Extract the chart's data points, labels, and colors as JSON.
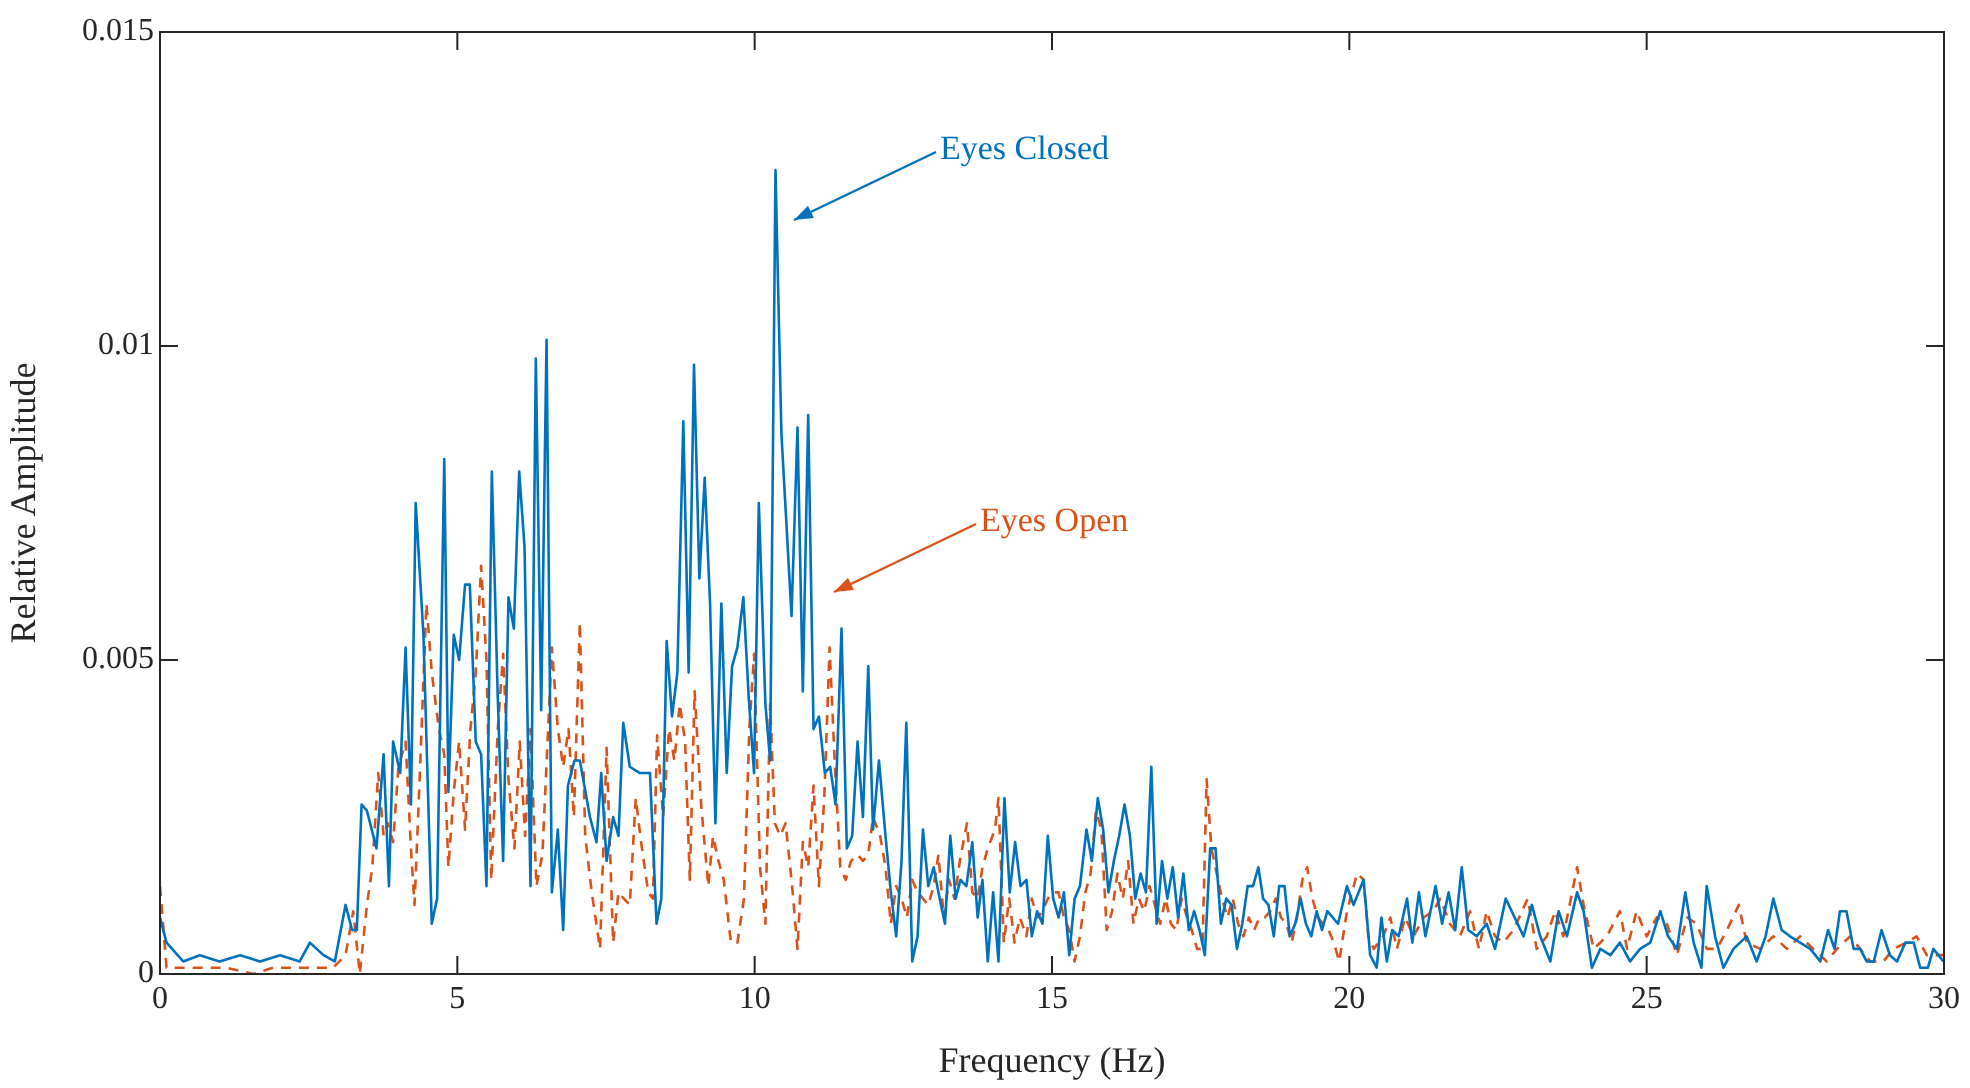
{
  "chart_data": {
    "type": "line",
    "xlabel": "Frequency (Hz)",
    "ylabel": "Relative Amplitude",
    "xlim": [
      0,
      30
    ],
    "xticks": [
      0,
      5,
      10,
      15,
      20,
      25,
      30
    ],
    "ylim": [
      0,
      0.015
    ],
    "yticks": [
      0,
      0.005,
      0.01,
      0.015
    ],
    "grid": false,
    "legend": false,
    "marker": "none",
    "annotations": [
      "Eyes Closed",
      "Eyes Open"
    ],
    "series": [
      {
        "color": "#0072bd",
        "line_style": "solid",
        "x": [
          0,
          0.11,
          0.39,
          0.67,
          1.0,
          1.35,
          1.68,
          2.02,
          2.35,
          2.52,
          2.75,
          2.94,
          3.12,
          3.23,
          3.31,
          3.39,
          3.48,
          3.64,
          3.76,
          3.85,
          3.92,
          4.04,
          4.13,
          4.22,
          4.3,
          4.43,
          4.57,
          4.66,
          4.78,
          4.85,
          4.94,
          5.03,
          5.13,
          5.21,
          5.31,
          5.4,
          5.49,
          5.58,
          5.68,
          5.77,
          5.86,
          5.95,
          6.04,
          6.13,
          6.23,
          6.32,
          6.41,
          6.5,
          6.59,
          6.69,
          6.78,
          6.86,
          6.97,
          7.06,
          7.23,
          7.34,
          7.42,
          7.51,
          7.62,
          7.71,
          7.79,
          7.9,
          8.07,
          8.24,
          8.35,
          8.43,
          8.52,
          8.61,
          8.7,
          8.8,
          8.89,
          8.98,
          9.07,
          9.16,
          9.25,
          9.34,
          9.44,
          9.53,
          9.62,
          9.71,
          9.81,
          9.9,
          9.99,
          10.07,
          10.18,
          10.26,
          10.35,
          10.45,
          10.62,
          10.72,
          10.81,
          10.9,
          10.99,
          11.08,
          11.18,
          11.27,
          11.36,
          11.46,
          11.55,
          11.64,
          11.73,
          11.82,
          11.91,
          11.99,
          12.09,
          12.2,
          12.29,
          12.38,
          12.47,
          12.55,
          12.65,
          12.74,
          12.83,
          12.92,
          13.01,
          13.09,
          13.2,
          13.29,
          13.38,
          13.46,
          13.56,
          13.66,
          13.75,
          13.83,
          13.92,
          14.01,
          14.1,
          14.2,
          14.29,
          14.38,
          14.47,
          14.57,
          14.66,
          14.75,
          14.84,
          14.93,
          15.02,
          15.11,
          15.2,
          15.29,
          15.38,
          15.47,
          15.58,
          15.67,
          15.77,
          15.86,
          15.95,
          16.04,
          16.13,
          16.22,
          16.31,
          16.4,
          16.49,
          16.58,
          16.67,
          16.76,
          16.85,
          16.94,
          17.03,
          17.12,
          17.21,
          17.3,
          17.39,
          17.48,
          17.57,
          17.66,
          17.75,
          17.84,
          17.93,
          18.02,
          18.11,
          18.2,
          18.29,
          18.38,
          18.47,
          18.55,
          18.64,
          18.73,
          18.82,
          18.91,
          19.0,
          19.09,
          19.18,
          19.27,
          19.36,
          19.45,
          19.54,
          19.63,
          19.72,
          19.81,
          19.96,
          20.07,
          20.24,
          20.35,
          20.46,
          20.54,
          20.63,
          20.72,
          20.83,
          20.97,
          21.06,
          21.17,
          21.28,
          21.45,
          21.56,
          21.67,
          21.78,
          21.89,
          22.0,
          22.14,
          22.31,
          22.45,
          22.63,
          22.78,
          22.93,
          23.07,
          23.21,
          23.38,
          23.52,
          23.66,
          23.83,
          23.94,
          24.08,
          24.22,
          24.39,
          24.55,
          24.72,
          24.89,
          25.06,
          25.23,
          25.36,
          25.51,
          25.65,
          25.79,
          25.92,
          26.01,
          26.15,
          26.29,
          26.46,
          26.68,
          26.85,
          27.0,
          27.13,
          27.27,
          27.41,
          27.58,
          27.75,
          27.92,
          28.05,
          28.16,
          28.25,
          28.36,
          28.48,
          28.59,
          28.7,
          28.82,
          28.95,
          29.09,
          29.21,
          29.35,
          29.49,
          29.6,
          29.73,
          29.82,
          29.99
        ],
        "values": [
          0.0009,
          0.0005,
          0.0002,
          0.0003,
          0.0002,
          0.0003,
          0.0002,
          0.0003,
          0.0002,
          0.0005,
          0.0003,
          0.0002,
          0.0011,
          0.0007,
          0.0007,
          0.0027,
          0.0026,
          0.002,
          0.0035,
          0.0014,
          0.0037,
          0.0032,
          0.0052,
          0.0027,
          0.0075,
          0.0054,
          0.0008,
          0.0012,
          0.0082,
          0.0029,
          0.0054,
          0.005,
          0.0062,
          0.0062,
          0.0037,
          0.0035,
          0.0014,
          0.008,
          0.0044,
          0.0018,
          0.006,
          0.0055,
          0.008,
          0.0068,
          0.0014,
          0.0098,
          0.0042,
          0.0101,
          0.0013,
          0.0023,
          0.0007,
          0.003,
          0.0034,
          0.0034,
          0.0025,
          0.0021,
          0.0032,
          0.0018,
          0.0025,
          0.0022,
          0.004,
          0.0033,
          0.0032,
          0.0032,
          0.0008,
          0.0012,
          0.0053,
          0.0041,
          0.0048,
          0.0088,
          0.0048,
          0.0097,
          0.0063,
          0.0079,
          0.0059,
          0.0024,
          0.0059,
          0.0032,
          0.0049,
          0.0052,
          0.006,
          0.0044,
          0.0032,
          0.0075,
          0.0043,
          0.0034,
          0.0128,
          0.0086,
          0.0057,
          0.0087,
          0.0045,
          0.0089,
          0.0039,
          0.0041,
          0.0032,
          0.0033,
          0.0027,
          0.0055,
          0.002,
          0.0022,
          0.0037,
          0.0025,
          0.0049,
          0.0023,
          0.0034,
          0.0022,
          0.0013,
          0.0006,
          0.0018,
          0.004,
          0.0002,
          0.0006,
          0.0023,
          0.0014,
          0.0017,
          0.0013,
          0.0008,
          0.0022,
          0.0012,
          0.0015,
          0.0014,
          0.0021,
          0.0009,
          0.0015,
          0.0002,
          0.0013,
          0.0002,
          0.0028,
          0.0013,
          0.0021,
          0.0014,
          0.0015,
          0.0006,
          0.001,
          0.0008,
          0.0022,
          0.0012,
          0.0009,
          0.0013,
          0.0003,
          0.0012,
          0.0014,
          0.0023,
          0.0018,
          0.0028,
          0.0023,
          0.0013,
          0.0018,
          0.0022,
          0.0027,
          0.0022,
          0.0012,
          0.0016,
          0.0013,
          0.0033,
          0.0008,
          0.0018,
          0.0012,
          0.0017,
          0.0009,
          0.0016,
          0.0007,
          0.001,
          0.0007,
          0.0003,
          0.002,
          0.002,
          0.0008,
          0.0012,
          0.0011,
          0.0004,
          0.0008,
          0.0014,
          0.0014,
          0.0017,
          0.0012,
          0.0011,
          0.0006,
          0.0014,
          0.0014,
          0.0006,
          0.0008,
          0.0012,
          0.0008,
          0.0006,
          0.001,
          0.0007,
          0.001,
          0.0009,
          0.0008,
          0.0014,
          0.0011,
          0.0015,
          0.0003,
          0.0001,
          0.0009,
          0.0002,
          0.0007,
          0.0006,
          0.0012,
          0.0005,
          0.0013,
          0.0006,
          0.0014,
          0.0008,
          0.0013,
          0.0007,
          0.0017,
          0.0007,
          0.0006,
          0.0008,
          0.0004,
          0.0012,
          0.0009,
          0.0006,
          0.0011,
          0.0006,
          0.0002,
          0.001,
          0.0006,
          0.0013,
          0.001,
          0.0001,
          0.0004,
          0.0003,
          0.0005,
          0.0002,
          0.0004,
          0.0005,
          0.001,
          0.0006,
          0.0004,
          0.0013,
          0.0005,
          0.0001,
          0.0014,
          0.0006,
          0.0001,
          0.0004,
          0.0006,
          0.0002,
          0.0006,
          0.0012,
          0.0007,
          0.0006,
          0.0005,
          0.0004,
          0.0002,
          0.0007,
          0.0004,
          0.001,
          0.001,
          0.0004,
          0.0004,
          0.0002,
          0.0002,
          0.0007,
          0.0003,
          0.0002,
          0.0005,
          0.0005,
          0.0001,
          0.0001,
          0.0004,
          0.0002
        ]
      },
      {
        "color": "#d95319",
        "line_style": "dashed",
        "x": [
          0,
          0.11,
          0.45,
          1.12,
          1.57,
          1.9,
          2.47,
          2.91,
          3.12,
          3.25,
          3.36,
          3.48,
          3.57,
          3.67,
          3.76,
          3.83,
          3.92,
          4.01,
          4.13,
          4.22,
          4.28,
          4.37,
          4.48,
          4.57,
          4.69,
          4.78,
          4.85,
          4.94,
          5.03,
          5.13,
          5.22,
          5.31,
          5.4,
          5.49,
          5.57,
          5.68,
          5.77,
          5.86,
          5.96,
          6.05,
          6.14,
          6.23,
          6.33,
          6.43,
          6.59,
          6.69,
          6.78,
          6.87,
          6.96,
          7.06,
          7.15,
          7.26,
          7.4,
          7.51,
          7.62,
          7.71,
          7.8,
          7.9,
          8.0,
          8.09,
          8.21,
          8.29,
          8.36,
          8.46,
          8.56,
          8.65,
          8.74,
          8.83,
          8.91,
          8.99,
          9.1,
          9.22,
          9.3,
          9.39,
          9.48,
          9.6,
          9.71,
          9.82,
          9.91,
          9.99,
          10.09,
          10.18,
          10.26,
          10.34,
          10.43,
          10.52,
          10.63,
          10.72,
          10.81,
          10.9,
          10.99,
          11.08,
          11.17,
          11.26,
          11.35,
          11.44,
          11.53,
          11.62,
          11.73,
          11.82,
          11.91,
          11.99,
          12.11,
          12.2,
          12.29,
          12.38,
          12.47,
          12.56,
          12.65,
          12.74,
          12.83,
          12.92,
          13.01,
          13.09,
          13.18,
          13.27,
          13.36,
          13.45,
          13.57,
          13.66,
          13.75,
          13.83,
          13.92,
          14.04,
          14.1,
          14.19,
          14.28,
          14.37,
          14.46,
          14.57,
          14.66,
          14.75,
          14.84,
          14.93,
          15.02,
          15.11,
          15.2,
          15.29,
          15.38,
          15.47,
          15.56,
          15.65,
          15.74,
          15.83,
          15.92,
          16.01,
          16.1,
          16.19,
          16.28,
          16.37,
          16.46,
          16.55,
          16.64,
          16.73,
          16.82,
          16.91,
          17.0,
          17.09,
          17.18,
          17.27,
          17.35,
          17.44,
          17.53,
          17.6,
          17.68,
          17.77,
          17.86,
          17.95,
          18.04,
          18.13,
          18.22,
          18.31,
          18.4,
          18.49,
          18.58,
          18.67,
          18.76,
          18.85,
          18.94,
          19.03,
          19.12,
          19.21,
          19.29,
          19.38,
          19.47,
          19.56,
          19.65,
          19.74,
          19.83,
          19.96,
          20.13,
          20.24,
          20.32,
          20.41,
          20.57,
          20.69,
          20.8,
          20.94,
          21.08,
          21.25,
          21.41,
          21.53,
          21.69,
          21.86,
          22.03,
          22.18,
          22.31,
          22.45,
          22.59,
          22.76,
          23.0,
          23.15,
          23.32,
          23.46,
          23.6,
          23.83,
          23.94,
          24.11,
          24.33,
          24.55,
          24.67,
          24.83,
          25.0,
          25.17,
          25.34,
          25.51,
          25.68,
          25.84,
          26.01,
          26.18,
          26.35,
          26.55,
          26.68,
          26.91,
          27.13,
          27.36,
          27.58,
          27.8,
          28.03,
          28.2,
          28.42,
          28.59,
          28.76,
          28.98,
          29.15,
          29.37,
          29.54,
          29.71,
          29.99
        ],
        "values": [
          0.0014,
          0.0001,
          0.0001,
          0.0001,
          0,
          0.0001,
          0.0001,
          0.0001,
          0.0003,
          0.001,
          0,
          0.0011,
          0.0017,
          0.0032,
          0.0022,
          0.0024,
          0.0021,
          0.0033,
          0.0037,
          0.002,
          0.0011,
          0.0032,
          0.0059,
          0.0048,
          0.0039,
          0.0035,
          0.0017,
          0.0029,
          0.0037,
          0.0023,
          0.0039,
          0.0048,
          0.0065,
          0.005,
          0.0015,
          0.0039,
          0.0051,
          0.0031,
          0.002,
          0.0037,
          0.0022,
          0.0039,
          0.0014,
          0.0019,
          0.0052,
          0.0039,
          0.0033,
          0.0039,
          0.0025,
          0.0056,
          0.0022,
          0.0013,
          0.0004,
          0.0036,
          0.0005,
          0.0013,
          0.0012,
          0.0011,
          0.0028,
          0.0021,
          0.0013,
          0.0012,
          0.0038,
          0.0025,
          0.0039,
          0.0034,
          0.0043,
          0.0037,
          0.0015,
          0.0045,
          0.0027,
          0.0014,
          0.0022,
          0.0018,
          0.0015,
          0.0005,
          0.0005,
          0.0012,
          0.0039,
          0.0051,
          0.0017,
          0.0008,
          0.0043,
          0.0024,
          0.0022,
          0.0024,
          0.0014,
          0.0004,
          0.0021,
          0.0017,
          0.003,
          0.0014,
          0.0028,
          0.0052,
          0.0033,
          0.0017,
          0.0015,
          0.0018,
          0.0019,
          0.0018,
          0.0019,
          0.0025,
          0.0022,
          0.0017,
          0.0008,
          0.0014,
          0.0012,
          0.0009,
          0.0015,
          0.0013,
          0.0012,
          0.0011,
          0.0014,
          0.0019,
          0.0009,
          0.0015,
          0.0012,
          0.0018,
          0.0024,
          0.0013,
          0.0012,
          0.0017,
          0.002,
          0.0023,
          0.0028,
          0.0005,
          0.0012,
          0.0005,
          0.0009,
          0.0006,
          0.0012,
          0.0009,
          0.001,
          0.0012,
          0.0013,
          0.0013,
          0.0009,
          0.0007,
          0.0002,
          0.0006,
          0.0013,
          0.0016,
          0.0026,
          0.0023,
          0.0007,
          0.001,
          0.0016,
          0.0012,
          0.0018,
          0.0008,
          0.0012,
          0.001,
          0.0014,
          0.0011,
          0.0008,
          0.0012,
          0.0008,
          0.0007,
          0.0012,
          0.0009,
          0.0007,
          0.0004,
          0.0004,
          0.0031,
          0.002,
          0.0016,
          0.0012,
          0.0009,
          0.0012,
          0.0008,
          0.0006,
          0.0009,
          0.0007,
          0.0009,
          0.0009,
          0.001,
          0.0012,
          0.0009,
          0.0008,
          0.0005,
          0.0009,
          0.0015,
          0.0017,
          0.0012,
          0.0009,
          0.0008,
          0.0007,
          0.0005,
          0.0002,
          0.001,
          0.0016,
          0.0015,
          0.0006,
          0.0004,
          0.0006,
          0.0009,
          0.0004,
          0.0009,
          0.0006,
          0.0009,
          0.001,
          0.0012,
          0.0008,
          0.0006,
          0.001,
          0.0004,
          0.001,
          0.0006,
          0.0005,
          0.0007,
          0.0012,
          0.0004,
          0.0006,
          0.001,
          0.0006,
          0.0017,
          0.0011,
          0.0004,
          0.0006,
          0.001,
          0.0004,
          0.001,
          0.0006,
          0.0009,
          0.0008,
          0.0003,
          0.0009,
          0.0008,
          0.0004,
          0.0004,
          0.0007,
          0.0011,
          0.0005,
          0.0004,
          0.0006,
          0.0004,
          0.0006,
          0.0004,
          0.0002,
          0.0004,
          0.0006,
          0.0004,
          0.0002,
          0.0002,
          0.0004,
          0.0005,
          0.0006,
          0.0003,
          0.0003
        ]
      }
    ]
  }
}
